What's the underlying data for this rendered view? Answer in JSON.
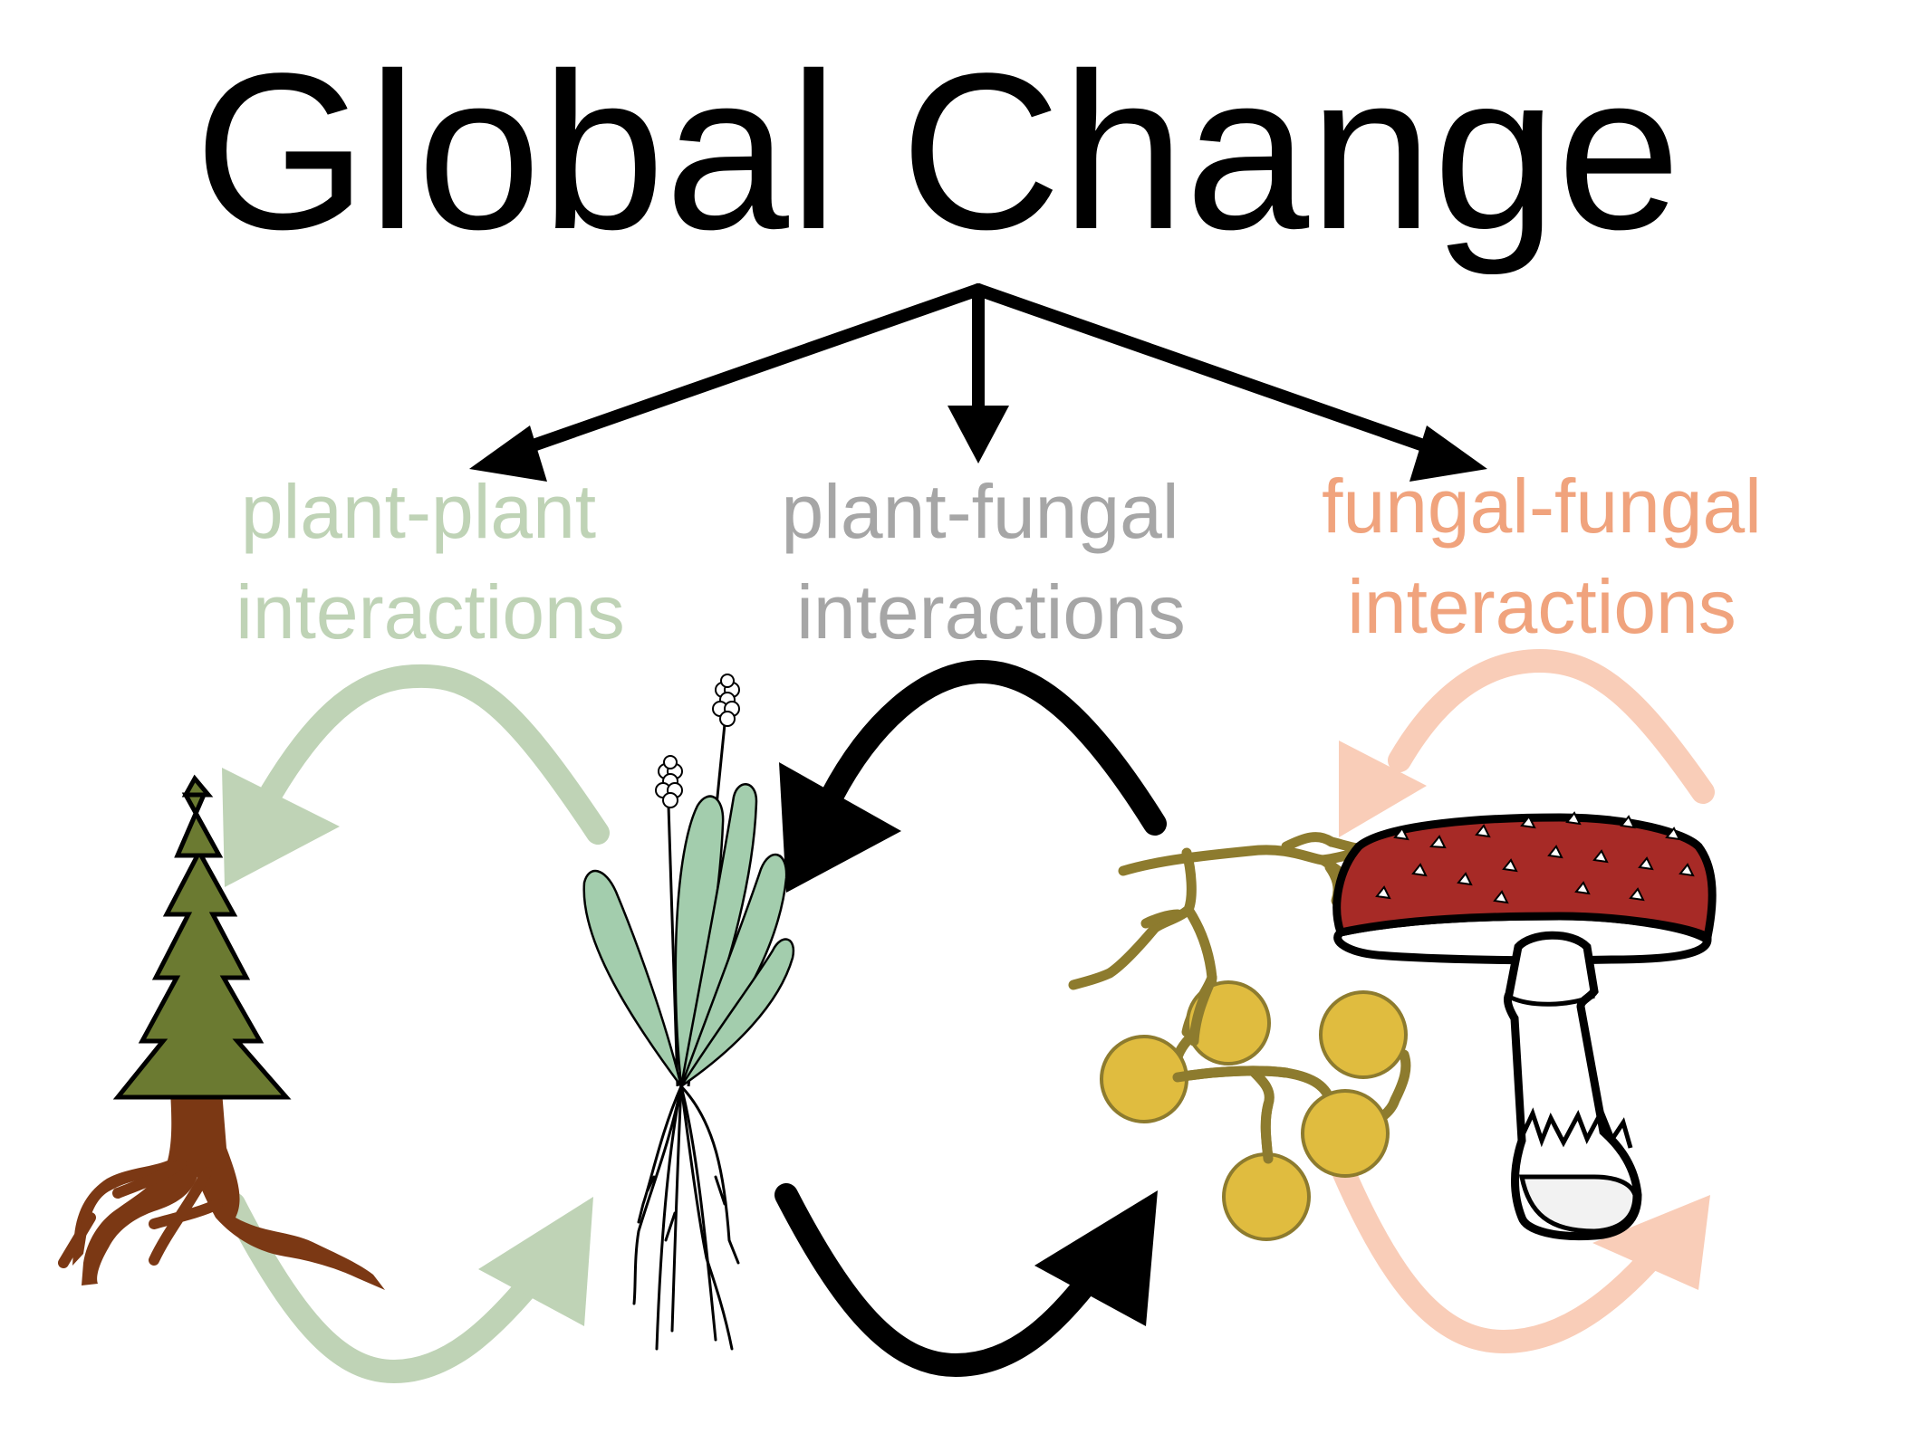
{
  "title": "Global Change",
  "labels": {
    "plant_plant": {
      "line1": "plant-plant",
      "line2": "interactions"
    },
    "plant_fungal": {
      "line1": "plant-fungal",
      "line2": "interactions"
    },
    "fungal_fungal": {
      "line1": "fungal-fungal",
      "line2": "interactions"
    }
  },
  "colors": {
    "plant_plant": "#bfd3b6",
    "plant_fungal": "#a6a6a6",
    "fungal_fungal": "#f0a37d",
    "fungal_fungal_arrows": "#f9cdb8",
    "arrows_main": "#000000",
    "tree_foliage": "#6b7a31",
    "tree_roots": "#7b3814",
    "herb_leaves": "#a3cdad",
    "hyphae": "#8d7b2e",
    "spores": "#e0bc3f",
    "mushroom_cap": "#a72a26"
  },
  "icons": [
    "conifer-tree-icon",
    "plantain-herb-icon",
    "fungal-hyphae-spores-icon",
    "amanita-mushroom-icon"
  ]
}
